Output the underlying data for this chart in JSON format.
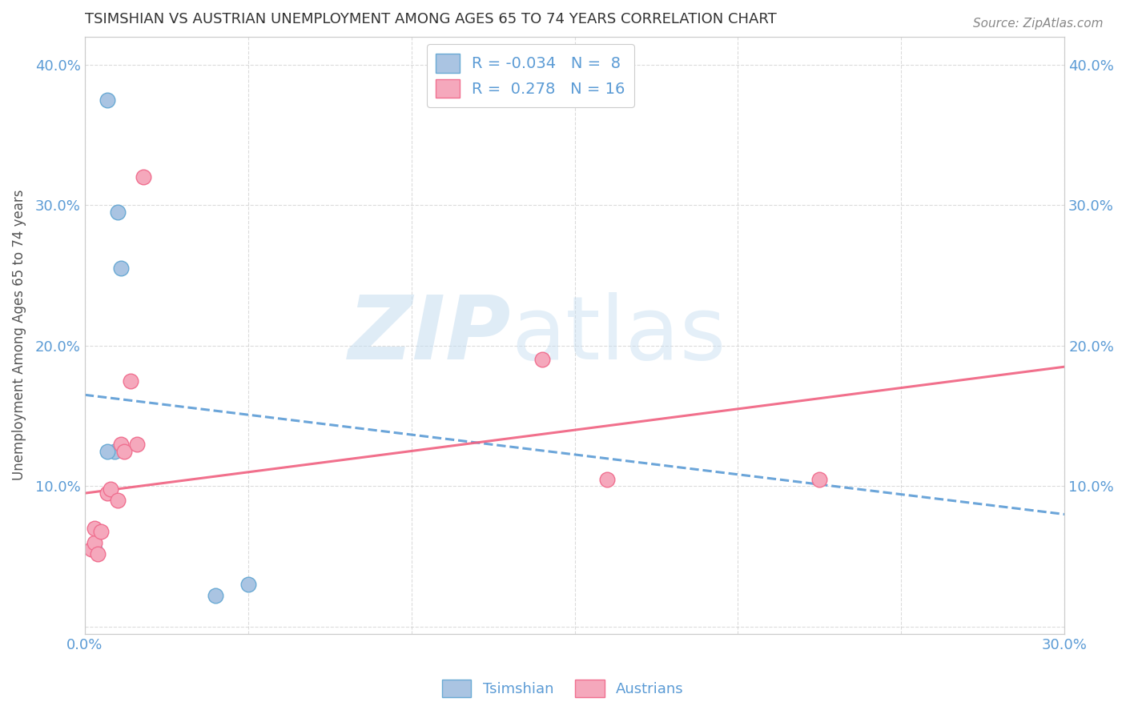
{
  "title": "TSIMSHIAN VS AUSTRIAN UNEMPLOYMENT AMONG AGES 65 TO 74 YEARS CORRELATION CHART",
  "source": "Source: ZipAtlas.com",
  "ylabel": "Unemployment Among Ages 65 to 74 years",
  "xlim": [
    0.0,
    0.3
  ],
  "ylim": [
    -0.005,
    0.42
  ],
  "x_ticks": [
    0.0,
    0.05,
    0.1,
    0.15,
    0.2,
    0.25,
    0.3
  ],
  "y_ticks": [
    0.0,
    0.1,
    0.2,
    0.3,
    0.4
  ],
  "tsimshian_color": "#aac4e2",
  "austrian_color": "#f5a8bc",
  "tsimshian_edge_color": "#6aaad4",
  "austrian_edge_color": "#f07090",
  "tsimshian_line_color": "#5b9bd5",
  "austrian_line_color": "#f06080",
  "tsimshian_points": [
    [
      0.007,
      0.375
    ],
    [
      0.01,
      0.295
    ],
    [
      0.011,
      0.255
    ],
    [
      0.009,
      0.125
    ],
    [
      0.007,
      0.125
    ],
    [
      0.003,
      0.055
    ],
    [
      0.04,
      0.022
    ],
    [
      0.05,
      0.03
    ]
  ],
  "austrian_points": [
    [
      0.002,
      0.055
    ],
    [
      0.003,
      0.06
    ],
    [
      0.003,
      0.07
    ],
    [
      0.004,
      0.052
    ],
    [
      0.005,
      0.068
    ],
    [
      0.007,
      0.095
    ],
    [
      0.008,
      0.098
    ],
    [
      0.01,
      0.09
    ],
    [
      0.011,
      0.13
    ],
    [
      0.012,
      0.125
    ],
    [
      0.014,
      0.175
    ],
    [
      0.016,
      0.13
    ],
    [
      0.018,
      0.32
    ],
    [
      0.14,
      0.19
    ],
    [
      0.16,
      0.105
    ],
    [
      0.225,
      0.105
    ]
  ],
  "tsimshian_trend_x": [
    0.0,
    0.3
  ],
  "tsimshian_trend_y": [
    0.165,
    0.08
  ],
  "austrian_trend_x": [
    0.0,
    0.3
  ],
  "austrian_trend_y": [
    0.095,
    0.185
  ],
  "legend1_label": "R = -0.034   N =  8",
  "legend2_label": "R =  0.278   N = 16",
  "bottom_legend1": "Tsimshian",
  "bottom_legend2": "Austrians",
  "watermark_zip": "ZIP",
  "watermark_atlas": "atlas",
  "background_color": "#ffffff",
  "grid_color": "#cccccc",
  "tick_color": "#5b9bd5",
  "title_color": "#333333",
  "ylabel_color": "#555555",
  "source_color": "#888888"
}
